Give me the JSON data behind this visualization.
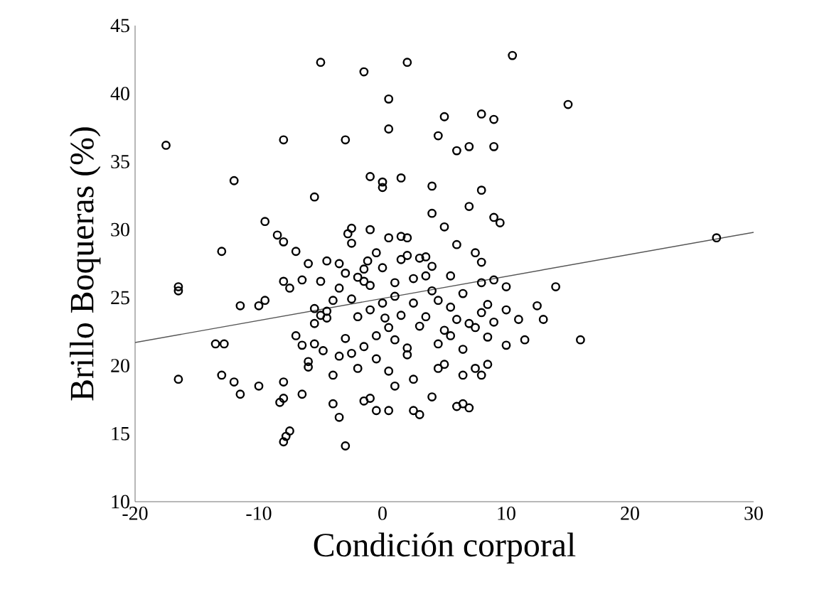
{
  "chart_data": {
    "type": "scatter",
    "xlabel": "Condición corporal",
    "ylabel": "Brillo Boqueras (%)",
    "xlim": [
      -20,
      30
    ],
    "ylim": [
      10,
      45
    ],
    "xticks": [
      -20,
      -10,
      0,
      10,
      20,
      30
    ],
    "yticks": [
      10,
      15,
      20,
      25,
      30,
      35,
      40,
      45
    ],
    "marker": "circle",
    "series": [
      {
        "color": "#000000",
        "x": [
          -17.5,
          -12,
          -9.5,
          -8,
          -5,
          -1.5,
          2,
          -3,
          0.5,
          0.5,
          10.5,
          15,
          4.5,
          5,
          8,
          9,
          6,
          7,
          9,
          1.5,
          4,
          0,
          -1,
          0,
          -5.5,
          8,
          7,
          9.5,
          9,
          4,
          -2.5,
          -2.8,
          0.5,
          1.5,
          -8.5,
          -8,
          -7,
          -13,
          -16.5,
          -16.5,
          -16.5,
          -13.5,
          -12.8,
          -13,
          -12,
          -11.5,
          -10,
          -9.5,
          -10,
          -11.5,
          -8.3,
          -8,
          -8,
          -7.5,
          -7.8,
          -8,
          -6.5,
          -6,
          -6.5,
          -5.5,
          -4.5,
          -4.5,
          -5,
          -4.8,
          -4,
          -3.5,
          -2.5,
          -3,
          -2.5,
          -1.5,
          -2,
          -3,
          -3.5,
          -4.5,
          -5,
          -6,
          -6.5,
          -7.5,
          -8,
          -7,
          -3.5,
          -1,
          -1.5,
          -0.5,
          0.5,
          -3,
          1,
          2,
          3,
          2.5,
          4,
          5,
          6,
          6.5,
          7,
          7.5,
          8,
          6.5,
          8.5,
          10,
          11.5,
          11,
          13,
          14,
          12.5,
          16,
          27,
          10,
          10,
          9,
          8,
          8.5,
          7,
          6.5,
          5.5,
          4.5,
          4,
          3.5,
          2,
          1,
          0,
          -1,
          0,
          0.5,
          1.5,
          3,
          2,
          1,
          -0.5,
          -1.5,
          -0.5,
          0.2,
          -1,
          4.5,
          5,
          6.5,
          7.5,
          9,
          8,
          7.5,
          6,
          5.5,
          3.5,
          2,
          3,
          -1.5,
          -0.5,
          1,
          2.5,
          3.5,
          5.5,
          6,
          8.5,
          4.5,
          2.5,
          0.5,
          -2,
          -4,
          -6,
          -3.5,
          -4,
          -5.5,
          -2,
          -1.2,
          1.5,
          2.5,
          4,
          5,
          8,
          -5.5,
          -2.5,
          -1
        ],
        "values": [
          36.2,
          33.6,
          30.6,
          36.6,
          42.3,
          41.6,
          42.3,
          36.6,
          39.6,
          37.4,
          42.8,
          39.2,
          36.9,
          38.3,
          38.5,
          38.1,
          35.8,
          36.1,
          36.1,
          33.8,
          33.2,
          33.5,
          33.9,
          33.1,
          32.4,
          32.9,
          31.7,
          30.5,
          30.9,
          31.2,
          30.1,
          29.7,
          29.4,
          29.5,
          29.6,
          29.1,
          28.4,
          28.4,
          25.8,
          25.5,
          19.0,
          21.6,
          21.6,
          19.3,
          18.8,
          17.9,
          18.5,
          24.8,
          24.4,
          24.4,
          17.3,
          17.6,
          18.8,
          15.2,
          14.8,
          14.4,
          17.9,
          20.3,
          21.5,
          23.1,
          24.0,
          23.5,
          23.7,
          21.1,
          17.2,
          16.2,
          20.9,
          22,
          24.9,
          27.1,
          26.5,
          26.8,
          27.5,
          27.7,
          26.2,
          27.5,
          26.3,
          25.7,
          26.2,
          22.2,
          20.7,
          17.6,
          17.4,
          16.7,
          16.7,
          14.1,
          18.5,
          20.8,
          16.4,
          16.7,
          17.7,
          20.1,
          17,
          17.2,
          16.9,
          19.8,
          19.3,
          19.3,
          22.1,
          21.5,
          21.9,
          23.4,
          23.4,
          25.8,
          24.4,
          21.9,
          29.4,
          25.8,
          24.1,
          23.2,
          23.9,
          24.5,
          23.1,
          25.3,
          24.3,
          24.8,
          27.3,
          28,
          28.1,
          26.1,
          24.6,
          25.9,
          27.2,
          22.8,
          23.7,
          22.9,
          21.3,
          21.9,
          20.5,
          21.4,
          22.2,
          23.5,
          24.1,
          21.6,
          22.6,
          21.2,
          22.8,
          26.3,
          27.6,
          28.3,
          28.9,
          26.6,
          26.6,
          29.4,
          27.9,
          26.2,
          28.3,
          25.1,
          24.6,
          23.6,
          22.2,
          23.4,
          20.1,
          19.8,
          19.0,
          19.6,
          19.8,
          19.3,
          19.9,
          25.7,
          24.8,
          24.2,
          23.6,
          27.7,
          27.8,
          26.4,
          25.5,
          30.2,
          26.1,
          21.6,
          29.0,
          30.0
        ]
      },
      {
        "type": "line",
        "color": "#555555",
        "marker": "none",
        "line_style": "solid",
        "x": [
          -20,
          30
        ],
        "values": [
          21.7,
          29.8
        ]
      }
    ]
  }
}
